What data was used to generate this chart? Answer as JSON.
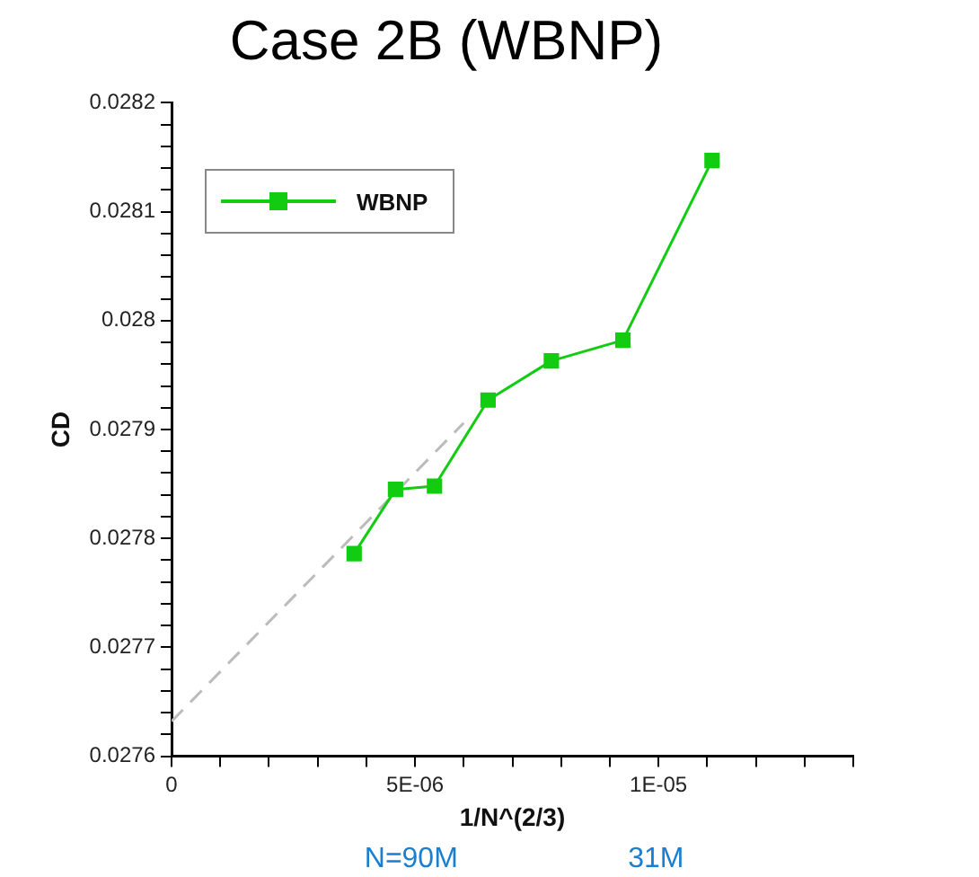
{
  "chart_data": {
    "type": "line",
    "title": "Case 2B (WBNP)",
    "xlabel": "1/N^(2/3)",
    "ylabel": "CD",
    "xlim": [
      0,
      1.4e-05
    ],
    "xticks": [
      0,
      {
        "value": 1e-06,
        "label": null
      },
      {
        "value": 2e-06,
        "label": null
      },
      {
        "value": 3e-06,
        "label": null
      },
      {
        "value": 4e-06,
        "label": null
      },
      {
        "value": 5e-06,
        "label": "5E-06"
      },
      {
        "value": 6e-06,
        "label": null
      },
      {
        "value": 7e-06,
        "label": null
      },
      {
        "value": 8e-06,
        "label": null
      },
      {
        "value": 9e-06,
        "label": null
      },
      {
        "value": 1e-05,
        "label": "1E-05"
      },
      {
        "value": 1.1e-05,
        "label": null
      },
      {
        "value": 1.2e-05,
        "label": null
      },
      {
        "value": 1.3e-05,
        "label": null
      },
      {
        "value": 1.4e-05,
        "label": null
      }
    ],
    "ylim": [
      0.0276,
      0.0282
    ],
    "yticks": [
      0.0276,
      {
        "value": 0.02762,
        "label": null
      },
      {
        "value": 0.02764,
        "label": null
      },
      {
        "value": 0.02766,
        "label": null
      },
      {
        "value": 0.02768,
        "label": null
      },
      0.0277,
      {
        "value": 0.02772,
        "label": null
      },
      {
        "value": 0.02774,
        "label": null
      },
      {
        "value": 0.02776,
        "label": null
      },
      {
        "value": 0.02778,
        "label": null
      },
      0.0278,
      {
        "value": 0.02782,
        "label": null
      },
      {
        "value": 0.02784,
        "label": null
      },
      {
        "value": 0.02786,
        "label": null
      },
      {
        "value": 0.02788,
        "label": null
      },
      0.0279,
      {
        "value": 0.02792,
        "label": null
      },
      {
        "value": 0.02794,
        "label": null
      },
      {
        "value": 0.02796,
        "label": null
      },
      {
        "value": 0.02798,
        "label": null
      },
      0.028,
      {
        "value": 0.02802,
        "label": null
      },
      {
        "value": 0.02804,
        "label": null
      },
      {
        "value": 0.02806,
        "label": null
      },
      {
        "value": 0.02808,
        "label": null
      },
      0.0281,
      {
        "value": 0.02812,
        "label": null
      },
      {
        "value": 0.02814,
        "label": null
      },
      {
        "value": 0.02816,
        "label": null
      },
      {
        "value": 0.02818,
        "label": null
      },
      0.0282
    ],
    "grid": false,
    "legend": "top left",
    "series": [
      {
        "name": "WBNP",
        "color": "#11cc11",
        "marker": "square",
        "line_style": "solid",
        "x": [
          3.75e-06,
          4.6e-06,
          5.4e-06,
          6.5e-06,
          7.8e-06,
          9.27e-06,
          1.11e-05
        ],
        "values": [
          0.027786,
          0.027845,
          0.027848,
          0.027927,
          0.027963,
          0.027982,
          0.028147
        ]
      },
      {
        "type": "line",
        "color": "#bbbbbb",
        "marker": "none",
        "line_style": "dashed",
        "x": [
          0,
          6e-06
        ],
        "values": [
          0.027632,
          0.027906
        ]
      }
    ],
    "annotations": [
      "N=90M",
      "31M"
    ]
  }
}
